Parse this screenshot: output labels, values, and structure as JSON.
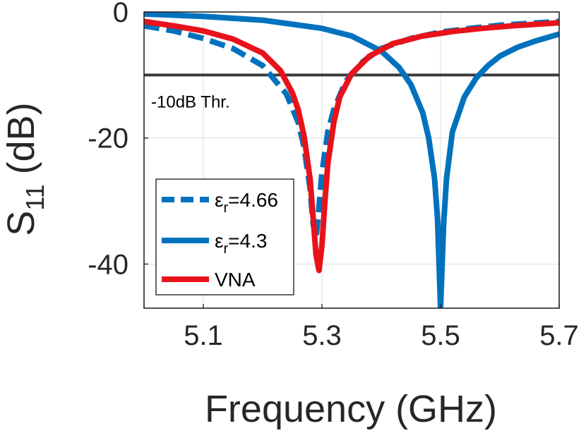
{
  "chart_data": {
    "type": "line",
    "xlabel": "Frequency (GHz)",
    "ylabel_main": "S",
    "ylabel_sub": "11",
    "ylabel_unit": "(dB)",
    "xlim": [
      5.0,
      5.7
    ],
    "ylim": [
      -47,
      0
    ],
    "grid": true,
    "x_ticks": [
      5.1,
      5.3,
      5.5,
      5.7
    ],
    "x_tick_labels": [
      "5.1",
      "5.3",
      "5.5",
      "5.7"
    ],
    "y_ticks": [
      0,
      -20,
      -40
    ],
    "y_tick_labels": [
      "0",
      "-20",
      "-40"
    ],
    "threshold": {
      "value": -10,
      "label": "-10dB Thr.",
      "color": "#3a3a3a"
    },
    "legend_position": "lower-left",
    "series": [
      {
        "name": "εr=4.66",
        "legend_symbol": "ε",
        "legend_subscript": "r",
        "legend_suffix": "=4.66",
        "color": "#0072BD",
        "style": "dashed",
        "x": [
          5.0,
          5.05,
          5.1,
          5.15,
          5.2,
          5.24,
          5.26,
          5.27,
          5.28,
          5.285,
          5.29,
          5.295,
          5.3,
          5.31,
          5.32,
          5.34,
          5.37,
          5.4,
          5.45,
          5.5,
          5.55,
          5.6,
          5.65,
          5.7
        ],
        "values": [
          -2.2,
          -3.0,
          -4.2,
          -5.8,
          -8.5,
          -13.0,
          -17.5,
          -21.5,
          -28.0,
          -33.5,
          -36.0,
          -31.0,
          -25.5,
          -19.0,
          -15.5,
          -11.0,
          -7.8,
          -5.8,
          -4.2,
          -3.2,
          -2.6,
          -2.1,
          -1.8,
          -1.5
        ]
      },
      {
        "name": "εr=4.3",
        "legend_symbol": "ε",
        "legend_subscript": "r",
        "legend_suffix": "=4.3",
        "color": "#0072BD",
        "style": "solid",
        "x": [
          5.0,
          5.1,
          5.2,
          5.3,
          5.35,
          5.4,
          5.43,
          5.45,
          5.47,
          5.48,
          5.49,
          5.495,
          5.5,
          5.505,
          5.51,
          5.52,
          5.54,
          5.56,
          5.58,
          5.6,
          5.63,
          5.66,
          5.7
        ],
        "values": [
          -0.3,
          -0.7,
          -1.3,
          -2.6,
          -3.8,
          -6.2,
          -8.8,
          -11.5,
          -16.0,
          -20.0,
          -26.5,
          -33.0,
          -47.0,
          -34.0,
          -26.5,
          -19.0,
          -13.5,
          -10.5,
          -8.5,
          -7.0,
          -5.6,
          -4.6,
          -3.5
        ]
      },
      {
        "name": "VNA",
        "color": "#E8121A",
        "style": "solid",
        "x": [
          5.0,
          5.05,
          5.1,
          5.15,
          5.2,
          5.23,
          5.25,
          5.26,
          5.27,
          5.28,
          5.29,
          5.295,
          5.3,
          5.305,
          5.31,
          5.32,
          5.33,
          5.35,
          5.38,
          5.42,
          5.47,
          5.52,
          5.57,
          5.62,
          5.7
        ],
        "values": [
          -1.5,
          -2.2,
          -3.0,
          -4.3,
          -6.5,
          -9.3,
          -12.8,
          -15.5,
          -19.8,
          -26.5,
          -38.5,
          -41.0,
          -37.0,
          -30.0,
          -24.0,
          -17.5,
          -13.5,
          -9.8,
          -7.0,
          -5.0,
          -3.8,
          -3.1,
          -2.6,
          -2.2,
          -1.7
        ]
      }
    ]
  }
}
